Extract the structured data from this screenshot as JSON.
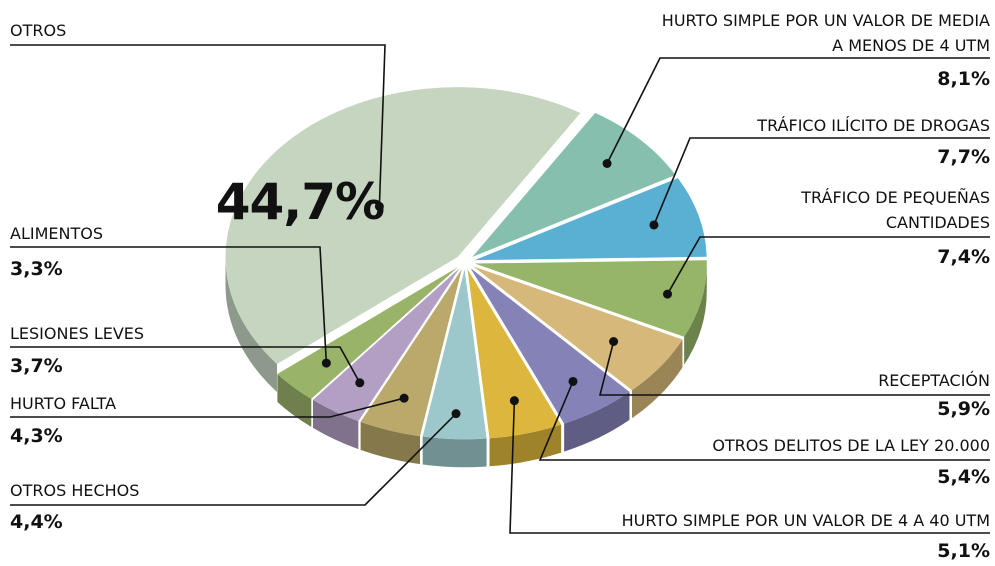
{
  "chart_data": {
    "type": "pie3d",
    "categories": [
      "OTROS",
      "HURTO SIMPLE POR UN VALOR DE MEDIA A MENOS DE 4 UTM",
      "TRÁFICO ILÍCITO DE DROGAS",
      "TRÁFICO DE PEQUEÑAS CANTIDADES",
      "RECEPTACIÓN",
      "OTROS DELITOS DE LA LEY 20.000",
      "HURTO SIMPLE POR UN VALOR DE 4 A 40 UTM",
      "OTROS HECHOS",
      "HURTO FALTA",
      "LESIONES LEVES",
      "ALIMENTOS"
    ],
    "values": [
      44.7,
      8.1,
      7.7,
      7.4,
      5.9,
      5.4,
      5.1,
      4.4,
      4.3,
      3.7,
      3.3
    ],
    "value_labels": [
      "44,7%",
      "8,1%",
      "7,7%",
      "7,4%",
      "5,9%",
      "5,4%",
      "5,1%",
      "4,4%",
      "4,3%",
      "3,7%",
      "3,3%"
    ],
    "colors": [
      "#c5d5c0",
      "#86bfae",
      "#5ab0d3",
      "#97b569",
      "#d6b97a",
      "#8582b8",
      "#dcb63d",
      "#9cc8cb",
      "#baa96a",
      "#b39ec4",
      "#99b369"
    ]
  }
}
